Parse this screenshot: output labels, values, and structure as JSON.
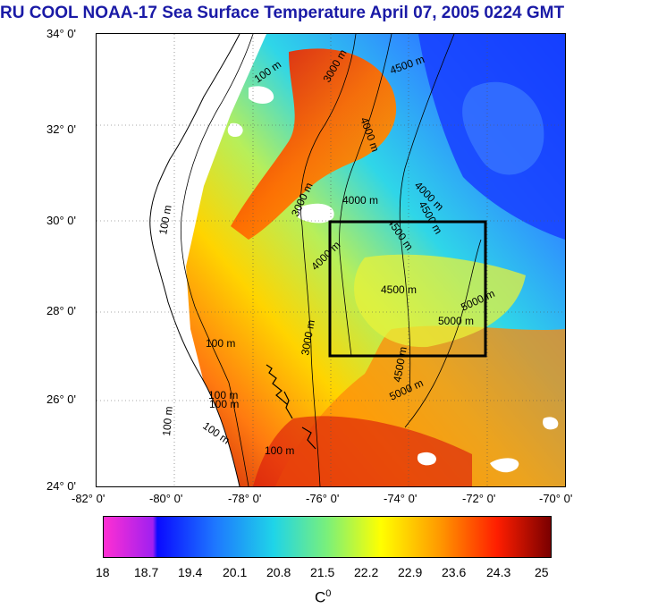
{
  "title": "RU COOL  NOAA-17 Sea Surface Temperature April 07, 2005 0224 GMT",
  "axes": {
    "lat_labels": [
      "34° 0'",
      "32° 0'",
      "30° 0'",
      "28° 0'",
      "26° 0'",
      "24° 0'"
    ],
    "lon_labels": [
      "-82° 0'",
      "-80° 0'",
      "-78° 0'",
      "-76° 0'",
      "-74° 0'",
      "-72° 0'",
      "-70° 0'"
    ],
    "lat_values": [
      34,
      32,
      30,
      28,
      26,
      24
    ],
    "lon_values": [
      -82,
      -80,
      -78,
      -76,
      -74,
      -72,
      -70
    ]
  },
  "bathymetry_labels": [
    {
      "text": "100 m"
    },
    {
      "text": "100 m"
    },
    {
      "text": "100 m"
    },
    {
      "text": "100 m"
    },
    {
      "text": "100 m"
    },
    {
      "text": "100 m"
    },
    {
      "text": "100 m"
    },
    {
      "text": "100 m"
    },
    {
      "text": "3000 m"
    },
    {
      "text": "3000 m"
    },
    {
      "text": "3000 m"
    },
    {
      "text": "4000 m"
    },
    {
      "text": "4000 m"
    },
    {
      "text": "4000 m"
    },
    {
      "text": "4000 m"
    },
    {
      "text": "4500 m"
    },
    {
      "text": "4500 m"
    },
    {
      "text": "4500 m"
    },
    {
      "text": "4500 m"
    },
    {
      "text": "4500 m"
    },
    {
      "text": "5000 m"
    },
    {
      "text": "5000 m"
    },
    {
      "text": "5000 m"
    }
  ],
  "study_box": {
    "lon_min": -76,
    "lon_max": -72,
    "lat_min": 27,
    "lat_max": 30
  },
  "colorbar": {
    "labels": [
      "18",
      "18.7",
      "19.4",
      "20.1",
      "20.8",
      "21.5",
      "22.2",
      "22.9",
      "23.6",
      "24.3",
      "25"
    ],
    "unit": "C",
    "unit_sup": "0"
  },
  "colors": {
    "title": "#1a1aa6",
    "cold": "#0a2bff",
    "mid": "#1fd4e8",
    "warm": "#ffd400",
    "hot": "#d10d0d"
  }
}
